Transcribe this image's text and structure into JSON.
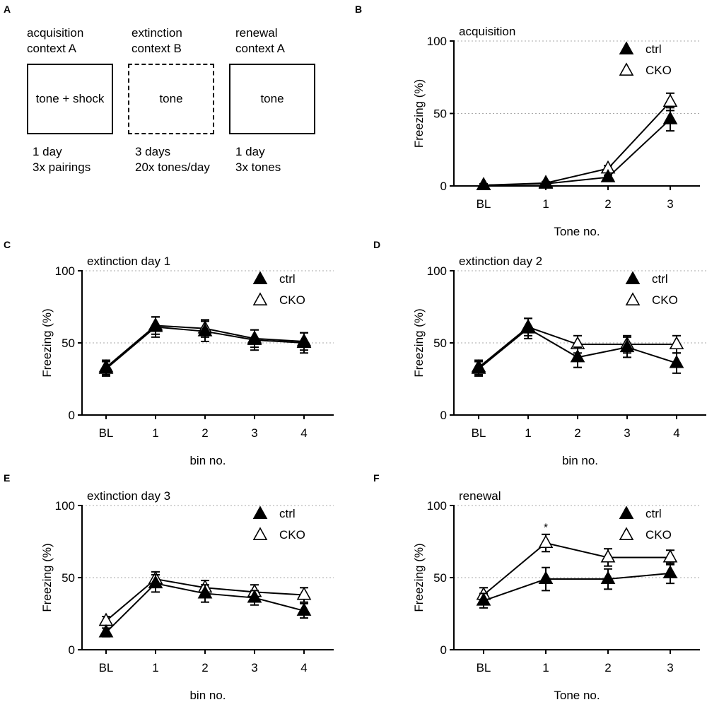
{
  "figure": {
    "panel_letters": [
      "A",
      "B",
      "C",
      "D",
      "E",
      "F"
    ]
  },
  "protocol": {
    "phases": [
      {
        "line1": "acquisition",
        "line2": "context A",
        "box_label": "tone + shock",
        "detail1": "1 day",
        "detail2": "3x pairings",
        "border": "solid"
      },
      {
        "line1": "extinction",
        "line2": "context B",
        "box_label": "tone",
        "detail1": "3 days",
        "detail2": "20x tones/day",
        "border": "dashed"
      },
      {
        "line1": "renewal",
        "line2": "context A",
        "box_label": "tone",
        "detail1": "1 day",
        "detail2": "3x tones",
        "border": "solid"
      }
    ]
  },
  "colors": {
    "ctrl": "#000000",
    "cko": "#ffffff",
    "grid": "#aaaaaa"
  },
  "chart_data": [
    {
      "panel": "B",
      "type": "line",
      "title": "acquisition",
      "xlabel": "Tone no.",
      "ylabel": "Freezing (%)",
      "categories": [
        "BL",
        "1",
        "2",
        "3"
      ],
      "ylim": [
        0,
        100
      ],
      "yticks": [
        0,
        50,
        100
      ],
      "grid": "dotted at 50 and 100",
      "legend": [
        "ctrl",
        "CKO"
      ],
      "legend_position": "top-right",
      "series": [
        {
          "name": "ctrl",
          "marker": "filled-triangle",
          "values": [
            0.5,
            1.5,
            6,
            46
          ],
          "errors": [
            1,
            1,
            1.5,
            8
          ]
        },
        {
          "name": "CKO",
          "marker": "open-triangle",
          "values": [
            0.5,
            2,
            12,
            58
          ],
          "errors": [
            1,
            1,
            2,
            6
          ]
        }
      ],
      "annotations": []
    },
    {
      "panel": "C",
      "type": "line",
      "title": "extinction day 1",
      "xlabel": "bin no.",
      "ylabel": "Freezing (%)",
      "categories": [
        "BL",
        "1",
        "2",
        "3",
        "4"
      ],
      "ylim": [
        0,
        100
      ],
      "yticks": [
        0,
        50,
        100
      ],
      "grid": "dotted at 50 and 100",
      "legend": [
        "ctrl",
        "CKO"
      ],
      "legend_position": "top-right",
      "series": [
        {
          "name": "ctrl",
          "marker": "filled-triangle",
          "values": [
            32,
            61,
            58,
            52,
            50
          ],
          "errors": [
            5,
            7,
            7,
            7,
            7
          ]
        },
        {
          "name": "CKO",
          "marker": "open-triangle",
          "values": [
            33,
            62,
            60,
            53,
            51
          ],
          "errors": [
            5,
            6,
            6,
            6,
            6
          ]
        }
      ],
      "annotations": []
    },
    {
      "panel": "D",
      "type": "line",
      "title": "extinction day 2",
      "xlabel": "bin no.",
      "ylabel": "Freezing (%)",
      "categories": [
        "BL",
        "1",
        "2",
        "3",
        "4"
      ],
      "ylim": [
        0,
        100
      ],
      "yticks": [
        0,
        50,
        100
      ],
      "grid": "dotted at 50 and 100",
      "legend": [
        "ctrl",
        "CKO"
      ],
      "legend_position": "top-right",
      "series": [
        {
          "name": "ctrl",
          "marker": "filled-triangle",
          "values": [
            32,
            60,
            40,
            47,
            36
          ],
          "errors": [
            5,
            7,
            7,
            7,
            7
          ]
        },
        {
          "name": "CKO",
          "marker": "open-triangle",
          "values": [
            33,
            61,
            49,
            49,
            49
          ],
          "errors": [
            5,
            6,
            6,
            6,
            6
          ]
        }
      ],
      "annotations": []
    },
    {
      "panel": "E",
      "type": "line",
      "title": "extinction day 3",
      "xlabel": "bin no.",
      "ylabel": "Freezing (%)",
      "categories": [
        "BL",
        "1",
        "2",
        "3",
        "4"
      ],
      "ylim": [
        0,
        100
      ],
      "yticks": [
        0,
        50,
        100
      ],
      "grid": "dotted at 50 and 100",
      "legend": [
        "ctrl",
        "CKO"
      ],
      "legend_position": "top-right",
      "series": [
        {
          "name": "ctrl",
          "marker": "filled-triangle",
          "values": [
            12,
            46,
            39,
            36,
            27
          ],
          "errors": [
            3,
            6,
            6,
            5,
            5
          ]
        },
        {
          "name": "CKO",
          "marker": "open-triangle",
          "values": [
            20,
            49,
            43,
            40,
            38
          ],
          "errors": [
            3,
            5,
            5,
            5,
            5
          ]
        }
      ],
      "annotations": []
    },
    {
      "panel": "F",
      "type": "line",
      "title": "renewal",
      "xlabel": "Tone no.",
      "ylabel": "Freezing (%)",
      "categories": [
        "BL",
        "1",
        "2",
        "3"
      ],
      "ylim": [
        0,
        100
      ],
      "yticks": [
        0,
        50,
        100
      ],
      "grid": "dotted at 50 and 100",
      "legend": [
        "ctrl",
        "CKO"
      ],
      "legend_position": "top-right",
      "series": [
        {
          "name": "ctrl",
          "marker": "filled-triangle",
          "values": [
            34,
            49,
            49,
            53
          ],
          "errors": [
            5,
            8,
            7,
            7
          ]
        },
        {
          "name": "CKO",
          "marker": "open-triangle",
          "values": [
            38,
            74,
            64,
            64
          ],
          "errors": [
            5,
            6,
            6,
            5
          ]
        }
      ],
      "annotations": [
        {
          "text": "*",
          "category": "1",
          "value": 84
        }
      ]
    }
  ]
}
